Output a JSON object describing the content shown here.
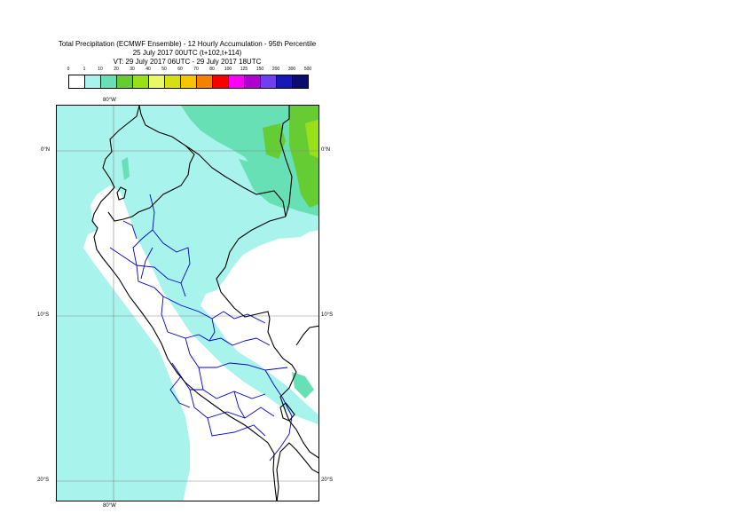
{
  "title": {
    "line1": "Total Precipitation (ECMWF Ensemble) - 12 Hourly Accumulation - 95th Percentile",
    "line2": "25 July 2017 00UTC (t+102,t+114)",
    "line3": "VT: 29 July 2017 06UTC - 29 July 2017 18UTC"
  },
  "legend": {
    "labels": [
      "0",
      "1",
      "10",
      "20",
      "30",
      "40",
      "50",
      "60",
      "70",
      "80",
      "100",
      "125",
      "150",
      "200",
      "300",
      "500"
    ],
    "colors": [
      "#ffffff",
      "#a8f4ec",
      "#66e0b4",
      "#66cc33",
      "#99e019",
      "#eaf866",
      "#d4e010",
      "#f8c400",
      "#f88000",
      "#f80000",
      "#f800f8",
      "#b000d0",
      "#7040f0",
      "#1818b8",
      "#0c0c6c"
    ]
  },
  "axes": {
    "lon_top": "80°W",
    "lon_bottom": "80°W",
    "lat_0_left": "0°N",
    "lat_0_right": "0°N",
    "lat_10_left": "10°S",
    "lat_10_right": "10°S",
    "lat_20_left": "20°S",
    "lat_20_right": "20°S"
  },
  "colors": {
    "light_cyan": "#a8f4ec",
    "teal": "#66e0b4",
    "green": "#66cc33",
    "coast": "#000000",
    "borders": "#0000cc",
    "grid": "#888888"
  }
}
